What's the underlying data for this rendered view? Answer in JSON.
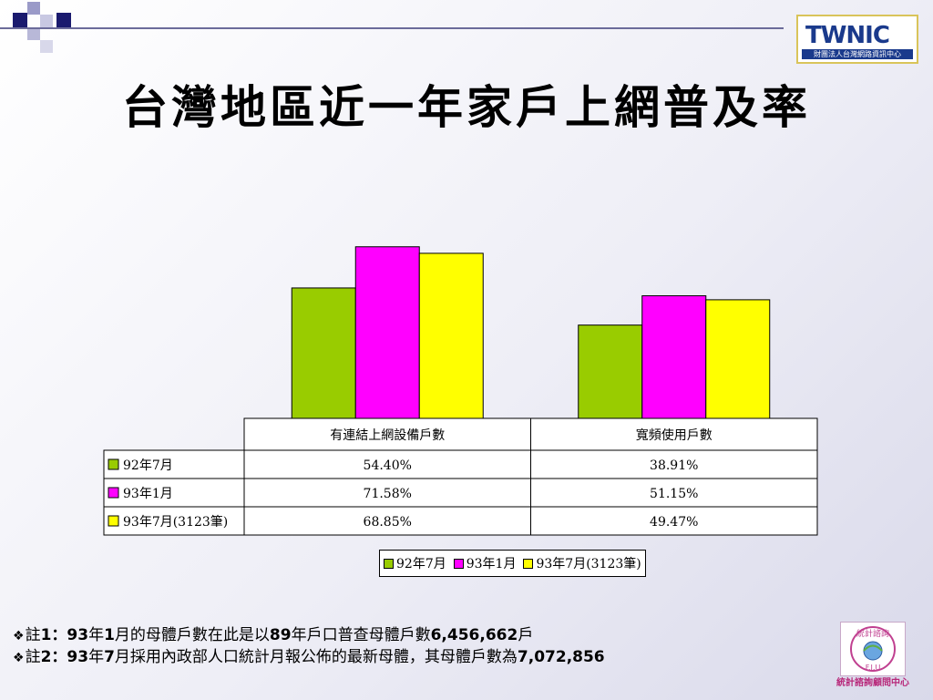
{
  "header": {
    "title": "台灣地區近一年家戶上網普及率",
    "logo": {
      "name": "TWNIC",
      "subtitle": "財團法人台灣網路資訊中心"
    }
  },
  "chart_data": {
    "type": "bar",
    "categories": [
      "有連結上網設備戶數",
      "寬頻使用戶數"
    ],
    "series": [
      {
        "name": "92年7月",
        "values": [
          54.4,
          38.91
        ],
        "labels": [
          "54.40%",
          "38.91%"
        ],
        "color": "#99cc00"
      },
      {
        "name": "93年1月",
        "values": [
          71.58,
          51.15
        ],
        "labels": [
          "71.58%",
          "51.15%"
        ],
        "color": "#ff00ff"
      },
      {
        "name": "93年7月(3123筆)",
        "values": [
          68.85,
          49.47
        ],
        "labels": [
          "68.85%",
          "49.47%"
        ],
        "color": "#ffff00"
      }
    ],
    "title": "",
    "xlabel": "",
    "ylabel": "",
    "ylim": [
      0,
      100
    ],
    "grid": false,
    "legend": "bottom-center"
  },
  "notes": [
    {
      "mark": "❖",
      "label": "註",
      "num": "1：",
      "num_bold": "93",
      "t1": "年",
      "b2": "1",
      "t2": "月的母體戶數在此是以",
      "b3": "89",
      "t3": "年戶口普查母體戶數",
      "b4": "6,456,662",
      "t4": "戶"
    },
    {
      "mark": "❖",
      "label": "註",
      "num": "2：",
      "num_bold": "93",
      "t1": "年",
      "b2": "7",
      "t2": "月採用內政部人口統計月報公佈的最新母體，其母體戶數為",
      "b3": "7,072,856",
      "t3": "",
      "b4": "",
      "t4": ""
    }
  ],
  "footer": {
    "seal_caption": "統計諮詢顧問中心",
    "seal_text": "統計諮詢",
    "seal_abbr": "F.J.U"
  }
}
